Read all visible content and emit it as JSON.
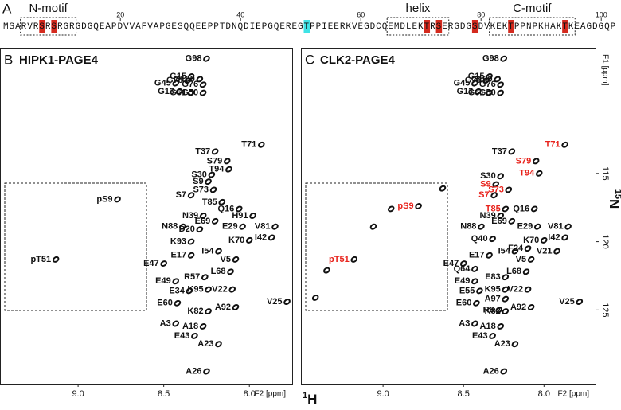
{
  "sequence_panel": {
    "letter": "A",
    "sequence": "MSARVRSRSRGRGDGQEAPDVVAFVAPGESQQEEPPTDNQDIEPGQEREGTPPIEERKVEGDCQEMDLEKTRSERGDGSDVKEKTPPNPKHAKTKEAGDGQP",
    "ruler": [
      20,
      40,
      60,
      80,
      100
    ],
    "red_residues": [
      7,
      9,
      71,
      73,
      79,
      85,
      94
    ],
    "red_color": "#d42a1e",
    "cyan_residues": [
      51
    ],
    "cyan_color": "#3fe3e6",
    "motifs": [
      {
        "label": "N-motif",
        "start": 4,
        "end": 12
      },
      {
        "label": "helix",
        "start": 65,
        "end": 74
      },
      {
        "label": "C-motif",
        "start": 82,
        "end": 95
      }
    ]
  },
  "axis_labels": {
    "x_mass": "1",
    "x_element": "H",
    "y_mass": "15",
    "y_element": "N"
  },
  "chart_data": [
    {
      "type": "scatter",
      "panel": "B",
      "title": "HIPK1-PAGE4",
      "x_label": "F2 [ppm]",
      "xlim": [
        9.456,
        7.75
      ],
      "ylim": [
        105.8,
        130.4
      ],
      "xticks": [
        {
          "value": 9,
          "label": "9.0"
        },
        {
          "value": 8.5,
          "label": "8.5"
        },
        {
          "value": 8,
          "label": "8.0"
        }
      ],
      "labels": [
        "G98",
        "G15",
        "G100",
        "G78",
        "G76",
        "G45",
        "G13",
        "G61",
        "G50",
        "T71",
        "T37",
        "S79",
        "T94",
        "S30",
        "S9",
        "S73",
        "S7",
        "T85",
        "Q16",
        "N39",
        "H91",
        "E69",
        "E29",
        "V81",
        "N88",
        "D20",
        "I42",
        "K70",
        "K93",
        "E17",
        "I54",
        "V5",
        "E47",
        "L68",
        "R57",
        "E49",
        "E34",
        "K95",
        "V22",
        "A92",
        "V25",
        "E60",
        "K82",
        "A3",
        "A18",
        "E43",
        "A23",
        "A26",
        "pS9",
        "pT51"
      ],
      "x": [
        8.25,
        8.34,
        8.29,
        8.36,
        8.27,
        8.43,
        8.41,
        8.34,
        8.27,
        7.93,
        8.2,
        8.13,
        8.12,
        8.22,
        8.24,
        8.21,
        8.34,
        8.16,
        8.06,
        8.27,
        7.98,
        8.2,
        8.04,
        7.85,
        8.39,
        8.29,
        7.87,
        8.0,
        8.34,
        8.34,
        8.18,
        8.08,
        8.5,
        8.11,
        8.26,
        8.43,
        8.35,
        8.24,
        8.1,
        8.08,
        7.78,
        8.42,
        8.24,
        8.43,
        8.27,
        8.32,
        8.18,
        8.25,
        8.77,
        9.13
      ],
      "y": [
        106.6,
        107.9,
        108.1,
        108.2,
        108.5,
        108.4,
        109.0,
        109.1,
        109.1,
        112.9,
        113.4,
        114.1,
        114.7,
        115.1,
        115.6,
        116.2,
        116.6,
        117.1,
        117.6,
        118.1,
        118.1,
        118.5,
        118.9,
        118.9,
        118.9,
        119.1,
        119.7,
        119.9,
        120.0,
        121.0,
        120.7,
        121.3,
        121.6,
        122.2,
        122.6,
        122.9,
        123.6,
        123.5,
        123.5,
        124.8,
        124.4,
        124.5,
        125.1,
        126.0,
        126.2,
        126.9,
        127.5,
        129.5,
        116.9,
        121.3
      ],
      "color": "#111"
    },
    {
      "type": "scatter",
      "panel": "C",
      "title": "CLK2-PAGE4",
      "x_label": "F2 [ppm]",
      "y_label": "F1 [ppm]",
      "xlim": [
        9.51,
        7.68
      ],
      "ylim": [
        105.8,
        130.4
      ],
      "xticks": [
        {
          "value": 9,
          "label": "9.0"
        },
        {
          "value": 8.5,
          "label": "8.5"
        },
        {
          "value": 8,
          "label": "8.0"
        }
      ],
      "yticks": [
        115,
        120,
        125
      ],
      "labels": [
        "G98",
        "G15",
        "G100",
        "G78",
        "G76",
        "G45",
        "G13",
        "G61",
        "G50",
        "T37",
        "S30",
        "N39",
        "Q16",
        "E69",
        "N88",
        "E29",
        "V81",
        "I42",
        "K70",
        "Q40",
        "F24",
        "V21",
        "E17",
        "E47",
        "I54",
        "V5",
        "Q64",
        "L68",
        "E83",
        "E49",
        "K95",
        "E55",
        "V22",
        "A97",
        "A92",
        "V25",
        "E60",
        "R6",
        "K82",
        "A3",
        "A18",
        "E43",
        "A23",
        "A26",
        "T71",
        "S79",
        "T94",
        "S9",
        "S73",
        "S7",
        "T85",
        "pS9",
        "pT51",
        null,
        null,
        null,
        null,
        null
      ],
      "x": [
        8.25,
        8.34,
        8.29,
        8.36,
        8.27,
        8.43,
        8.41,
        8.34,
        8.27,
        8.2,
        8.27,
        8.27,
        8.06,
        8.2,
        8.39,
        8.04,
        7.85,
        7.87,
        8.0,
        8.32,
        8.1,
        7.92,
        8.34,
        8.5,
        8.18,
        8.08,
        8.43,
        8.11,
        8.24,
        8.43,
        8.24,
        8.4,
        8.1,
        8.24,
        8.08,
        7.78,
        8.42,
        8.28,
        8.24,
        8.43,
        8.27,
        8.32,
        8.18,
        8.25,
        7.87,
        8.05,
        8.03,
        8.3,
        8.22,
        8.31,
        8.24,
        8.78,
        9.18,
        8.63,
        8.95,
        9.06,
        9.35,
        9.42
      ],
      "y": [
        106.6,
        107.9,
        108.1,
        108.2,
        108.5,
        108.4,
        109.0,
        109.1,
        109.1,
        113.4,
        115.2,
        118.1,
        117.6,
        118.5,
        118.9,
        118.9,
        118.9,
        119.7,
        119.9,
        119.8,
        120.5,
        120.7,
        121.0,
        121.6,
        120.7,
        121.3,
        122.0,
        122.2,
        122.6,
        122.9,
        123.5,
        123.6,
        123.5,
        124.2,
        124.8,
        124.4,
        124.5,
        125.0,
        125.1,
        126.0,
        126.2,
        126.9,
        127.5,
        129.5,
        112.9,
        114.1,
        115.0,
        115.8,
        116.2,
        116.6,
        117.6,
        117.4,
        121.3,
        116.1,
        117.6,
        118.9,
        122.1,
        124.1
      ],
      "colors": [
        "#111",
        "#111",
        "#111",
        "#111",
        "#111",
        "#111",
        "#111",
        "#111",
        "#111",
        "#111",
        "#111",
        "#111",
        "#111",
        "#111",
        "#111",
        "#111",
        "#111",
        "#111",
        "#111",
        "#111",
        "#111",
        "#111",
        "#111",
        "#111",
        "#111",
        "#111",
        "#111",
        "#111",
        "#111",
        "#111",
        "#111",
        "#111",
        "#111",
        "#111",
        "#111",
        "#111",
        "#111",
        "#111",
        "#111",
        "#111",
        "#111",
        "#111",
        "#111",
        "#111",
        "#e8231c",
        "#e8231c",
        "#e8231c",
        "#e8231c",
        "#e8231c",
        "#e8231c",
        "#e8231c",
        "#e8231c",
        "#e8231c",
        "#111",
        "#111",
        "#111",
        "#111",
        "#111"
      ]
    }
  ]
}
